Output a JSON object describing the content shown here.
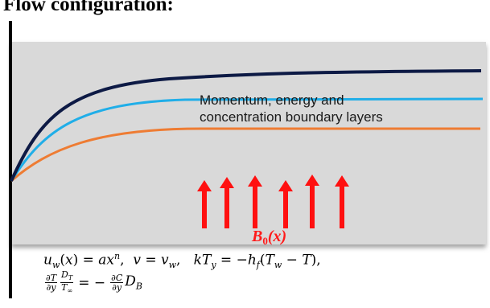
{
  "heading": "Flow configuration:",
  "caption_lines": [
    "Momentum, energy and",
    "concentration boundary layers"
  ],
  "field_label": "B",
  "field_label_sub": "0",
  "field_label_arg": "(x)",
  "colors": {
    "panel": "#d9d9d9",
    "momentum_layer": "#0d1a45",
    "energy_layer": "#20aee8",
    "concentration_layer": "#ee7c33",
    "arrows": "#ff1010"
  },
  "boundary_conditions": {
    "line1": "u_w(x) = a x^n,  v = v_w,  kT_y = −h_f(T_w − T),",
    "line2": "∂T/∂y · D_T/T_∞ = −∂C/∂y · D_B"
  },
  "icons": [
    "magnetic-field-arrow-icon"
  ]
}
